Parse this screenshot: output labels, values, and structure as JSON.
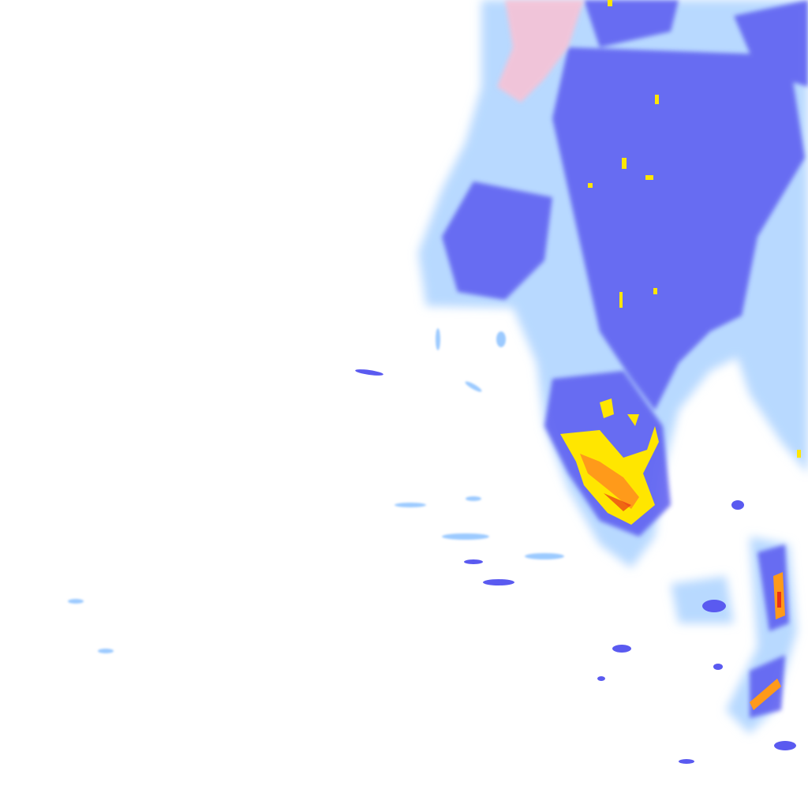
{
  "map": {
    "kind": "precipitation-radar-tile",
    "palette": {
      "background": "#ffffff",
      "very_light": "#cfe6ff",
      "light": "#9ccaff",
      "moderate": "#5a5af0",
      "heavy": "#3a2ee0",
      "intense": "#ffe600",
      "severe": "#ff9a1a",
      "extreme": "#e8301a",
      "mixed_snow": "#ffc0d0"
    }
  }
}
